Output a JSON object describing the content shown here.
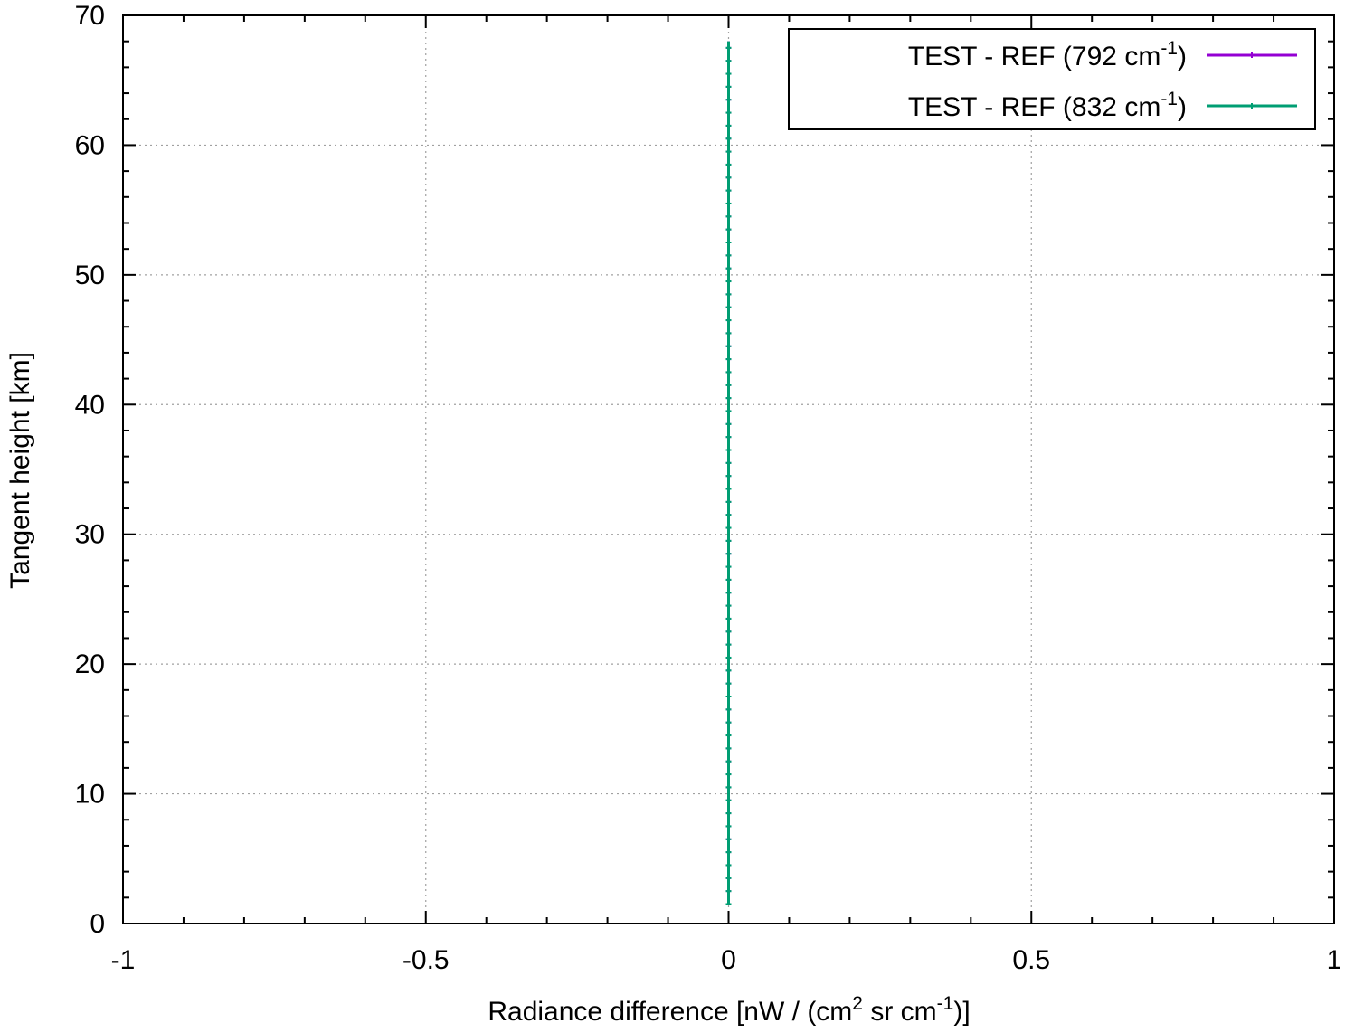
{
  "chart_data": {
    "type": "line",
    "title": "",
    "xlabel": {
      "prefix": "Radiance difference [nW / (cm",
      "sup1": "2",
      "middle": " sr cm",
      "sup2": "-1",
      "suffix": ")]"
    },
    "ylabel": "Tangent height [km]",
    "xlim": [
      -1,
      1
    ],
    "ylim": [
      0,
      70
    ],
    "xticks": [
      -1,
      -0.5,
      0,
      0.5,
      1
    ],
    "xtick_labels": [
      "-1",
      "-0.5",
      "0",
      "0.5",
      "1"
    ],
    "yticks": [
      0,
      10,
      20,
      30,
      40,
      50,
      60,
      70
    ],
    "ytick_labels": [
      "0",
      "10",
      "20",
      "30",
      "40",
      "50",
      "60",
      "70"
    ],
    "x_minor_step": 0.1,
    "y_minor_step": 2,
    "grid": true,
    "legend_position": "top-right",
    "series": [
      {
        "name_prefix": "TEST - REF (792 cm",
        "name_sup": "-1",
        "name_suffix": ")",
        "color": "#9400d3",
        "x": [
          0,
          0
        ],
        "y": [
          1.5,
          68
        ]
      },
      {
        "name_prefix": "TEST - REF (832 cm",
        "name_sup": "-1",
        "name_suffix": ")",
        "color": "#009e73",
        "x": [
          0,
          0
        ],
        "y": [
          1.5,
          68
        ]
      }
    ]
  }
}
